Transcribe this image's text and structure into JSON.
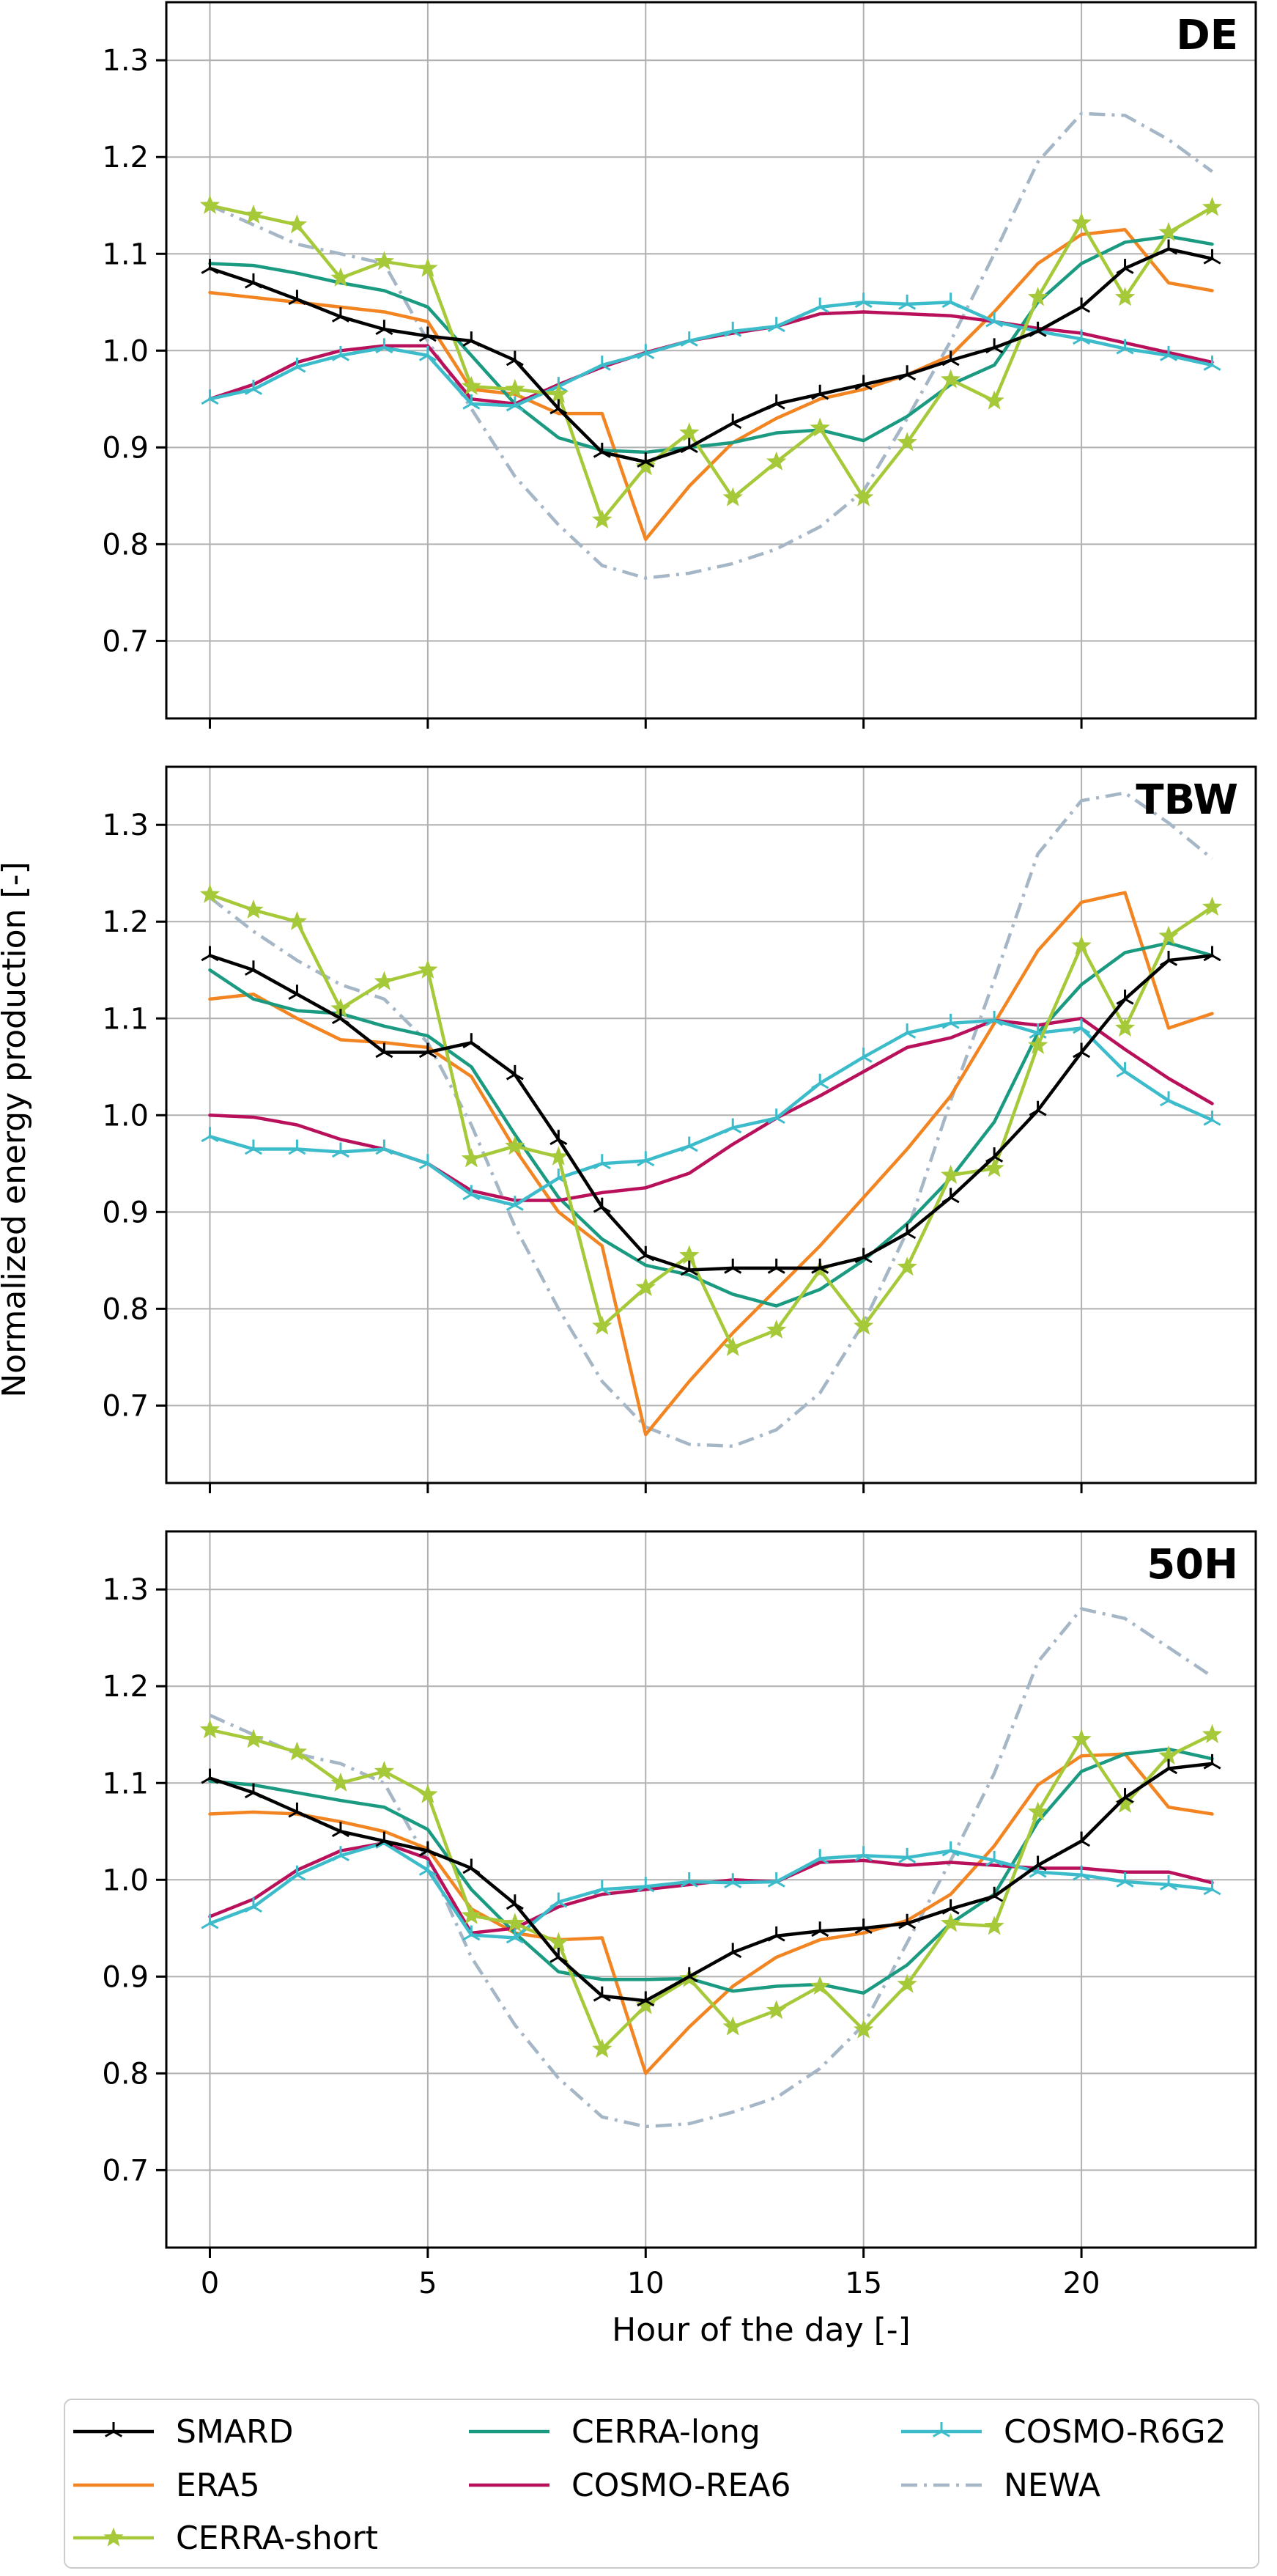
{
  "chart_data": {
    "type": "line",
    "ylabel": "Normalized energy production [-]",
    "xlabel": "Hour of the day [-]",
    "xlim": [
      -1,
      24
    ],
    "ylim": [
      0.62,
      1.36
    ],
    "xticks": [
      0,
      5,
      10,
      15,
      20
    ],
    "yticks": [
      0.7,
      0.8,
      0.9,
      1.0,
      1.1,
      1.2,
      1.3
    ],
    "ytick_labels": [
      "0.7",
      "0.8",
      "0.9",
      "1.0",
      "1.1",
      "1.2",
      "1.3"
    ],
    "xtick_labels": [
      "0",
      "5",
      "10",
      "15",
      "20"
    ],
    "grid": true,
    "legend_position": "bottom",
    "series_styles": [
      {
        "name": "SMARD",
        "color": "#000000",
        "marker": "tri",
        "dash": ""
      },
      {
        "name": "ERA5",
        "color": "#f28522",
        "marker": "none",
        "dash": ""
      },
      {
        "name": "CERRA-short",
        "color": "#a6c93a",
        "marker": "star",
        "dash": ""
      },
      {
        "name": "CERRA-long",
        "color": "#1a9a80",
        "marker": "none",
        "dash": ""
      },
      {
        "name": "COSMO-REA6",
        "color": "#b8105a",
        "marker": "none",
        "dash": ""
      },
      {
        "name": "COSMO-R6G2",
        "color": "#3cbccb",
        "marker": "tri",
        "dash": ""
      },
      {
        "name": "NEWA",
        "color": "#a5b6c6",
        "marker": "none",
        "dash": "dashdot"
      }
    ],
    "x": [
      0,
      1,
      2,
      3,
      4,
      5,
      6,
      7,
      8,
      9,
      10,
      11,
      12,
      13,
      14,
      15,
      16,
      17,
      18,
      19,
      20,
      21,
      22,
      23
    ],
    "panels": [
      {
        "title": "DE",
        "series": [
          {
            "name": "SMARD",
            "values": [
              1.085,
              1.07,
              1.053,
              1.035,
              1.022,
              1.015,
              1.01,
              0.99,
              0.94,
              0.895,
              0.885,
              0.9,
              0.925,
              0.945,
              0.955,
              0.965,
              0.975,
              0.99,
              1.003,
              1.02,
              1.045,
              1.085,
              1.105,
              1.095
            ]
          },
          {
            "name": "ERA5",
            "values": [
              1.06,
              1.055,
              1.05,
              1.045,
              1.04,
              1.03,
              0.96,
              0.955,
              0.935,
              0.935,
              0.805,
              0.86,
              0.905,
              0.93,
              0.95,
              0.96,
              0.975,
              0.995,
              1.04,
              1.09,
              1.12,
              1.125,
              1.07,
              1.062
            ]
          },
          {
            "name": "CERRA-short",
            "values": [
              1.15,
              1.14,
              1.13,
              1.075,
              1.092,
              1.085,
              0.963,
              0.96,
              0.955,
              0.825,
              0.88,
              0.915,
              0.848,
              0.885,
              0.92,
              0.848,
              0.905,
              0.97,
              0.948,
              1.055,
              1.132,
              1.055,
              1.122,
              1.148
            ]
          },
          {
            "name": "CERRA-long",
            "values": [
              1.09,
              1.088,
              1.08,
              1.07,
              1.062,
              1.045,
              0.995,
              0.945,
              0.91,
              0.897,
              0.895,
              0.9,
              0.905,
              0.915,
              0.918,
              0.907,
              0.932,
              0.965,
              0.985,
              1.05,
              1.09,
              1.112,
              1.118,
              1.11
            ]
          },
          {
            "name": "COSMO-REA6",
            "values": [
              0.95,
              0.965,
              0.988,
              1.0,
              1.005,
              1.005,
              0.95,
              0.945,
              0.965,
              0.983,
              0.998,
              1.01,
              1.018,
              1.025,
              1.038,
              1.04,
              1.038,
              1.036,
              1.03,
              1.023,
              1.018,
              1.008,
              0.998,
              0.988
            ]
          },
          {
            "name": "COSMO-R6G2",
            "values": [
              0.95,
              0.96,
              0.983,
              0.995,
              1.003,
              0.995,
              0.945,
              0.943,
              0.963,
              0.985,
              0.997,
              1.01,
              1.02,
              1.025,
              1.045,
              1.05,
              1.048,
              1.05,
              1.03,
              1.02,
              1.012,
              1.002,
              0.995,
              0.985
            ]
          },
          {
            "name": "NEWA",
            "values": [
              1.15,
              1.13,
              1.11,
              1.1,
              1.09,
              1.01,
              0.94,
              0.87,
              0.82,
              0.778,
              0.765,
              0.77,
              0.78,
              0.795,
              0.818,
              0.855,
              0.93,
              1.01,
              1.1,
              1.195,
              1.245,
              1.243,
              1.218,
              1.185
            ]
          }
        ]
      },
      {
        "title": "TBW",
        "series": [
          {
            "name": "SMARD",
            "values": [
              1.165,
              1.15,
              1.125,
              1.1,
              1.065,
              1.065,
              1.075,
              1.042,
              0.975,
              0.905,
              0.855,
              0.84,
              0.842,
              0.842,
              0.842,
              0.853,
              0.878,
              0.915,
              0.957,
              1.005,
              1.065,
              1.12,
              1.16,
              1.165
            ]
          },
          {
            "name": "ERA5",
            "values": [
              1.12,
              1.125,
              1.1,
              1.078,
              1.075,
              1.07,
              1.04,
              0.965,
              0.9,
              0.865,
              0.67,
              0.725,
              0.775,
              0.82,
              0.865,
              0.915,
              0.965,
              1.02,
              1.095,
              1.17,
              1.22,
              1.23,
              1.09,
              1.105
            ]
          },
          {
            "name": "CERRA-short",
            "values": [
              1.228,
              1.212,
              1.2,
              1.11,
              1.138,
              1.15,
              0.955,
              0.968,
              0.957,
              0.782,
              0.822,
              0.855,
              0.76,
              0.778,
              0.84,
              0.782,
              0.843,
              0.938,
              0.945,
              1.072,
              1.175,
              1.09,
              1.185,
              1.215
            ]
          },
          {
            "name": "CERRA-long",
            "values": [
              1.15,
              1.12,
              1.108,
              1.105,
              1.092,
              1.082,
              1.05,
              0.98,
              0.915,
              0.872,
              0.845,
              0.835,
              0.815,
              0.803,
              0.82,
              0.85,
              0.888,
              0.935,
              0.993,
              1.085,
              1.135,
              1.168,
              1.178,
              1.165
            ]
          },
          {
            "name": "COSMO-REA6",
            "values": [
              1.0,
              0.998,
              0.99,
              0.975,
              0.965,
              0.95,
              0.922,
              0.912,
              0.912,
              0.92,
              0.925,
              0.94,
              0.97,
              0.997,
              1.02,
              1.045,
              1.07,
              1.08,
              1.098,
              1.093,
              1.1,
              1.068,
              1.038,
              1.012
            ]
          },
          {
            "name": "COSMO-R6G2",
            "values": [
              0.978,
              0.965,
              0.965,
              0.962,
              0.965,
              0.95,
              0.918,
              0.907,
              0.935,
              0.95,
              0.953,
              0.968,
              0.987,
              0.997,
              1.033,
              1.06,
              1.085,
              1.095,
              1.098,
              1.085,
              1.09,
              1.045,
              1.015,
              0.995
            ]
          },
          {
            "name": "NEWA",
            "values": [
              1.225,
              1.19,
              1.16,
              1.135,
              1.12,
              1.075,
              0.99,
              0.885,
              0.8,
              0.725,
              0.678,
              0.66,
              0.658,
              0.675,
              0.713,
              0.785,
              0.88,
              1.015,
              1.14,
              1.27,
              1.325,
              1.333,
              1.302,
              1.265
            ]
          }
        ]
      },
      {
        "title": "50H",
        "series": [
          {
            "name": "SMARD",
            "values": [
              1.105,
              1.09,
              1.07,
              1.05,
              1.04,
              1.03,
              1.012,
              0.975,
              0.92,
              0.88,
              0.875,
              0.9,
              0.925,
              0.942,
              0.947,
              0.95,
              0.955,
              0.97,
              0.983,
              1.015,
              1.04,
              1.085,
              1.115,
              1.12
            ]
          },
          {
            "name": "ERA5",
            "values": [
              1.068,
              1.07,
              1.068,
              1.06,
              1.05,
              1.032,
              0.97,
              0.945,
              0.938,
              0.94,
              0.8,
              0.848,
              0.89,
              0.92,
              0.938,
              0.945,
              0.958,
              0.985,
              1.035,
              1.098,
              1.128,
              1.13,
              1.075,
              1.068
            ]
          },
          {
            "name": "CERRA-short",
            "values": [
              1.155,
              1.145,
              1.132,
              1.1,
              1.112,
              1.088,
              0.963,
              0.955,
              0.935,
              0.825,
              0.87,
              0.898,
              0.848,
              0.865,
              0.89,
              0.845,
              0.892,
              0.955,
              0.952,
              1.07,
              1.145,
              1.078,
              1.128,
              1.15
            ]
          },
          {
            "name": "CERRA-long",
            "values": [
              1.102,
              1.098,
              1.09,
              1.082,
              1.075,
              1.052,
              0.99,
              0.945,
              0.905,
              0.897,
              0.897,
              0.898,
              0.885,
              0.89,
              0.892,
              0.883,
              0.912,
              0.955,
              0.985,
              1.06,
              1.112,
              1.13,
              1.135,
              1.125
            ]
          },
          {
            "name": "COSMO-REA6",
            "values": [
              0.962,
              0.98,
              1.01,
              1.03,
              1.038,
              1.022,
              0.945,
              0.95,
              0.972,
              0.985,
              0.99,
              0.995,
              1.0,
              0.998,
              1.018,
              1.02,
              1.015,
              1.018,
              1.015,
              1.012,
              1.012,
              1.008,
              1.008,
              0.997
            ]
          },
          {
            "name": "COSMO-R6G2",
            "values": [
              0.955,
              0.972,
              1.005,
              1.025,
              1.038,
              1.01,
              0.943,
              0.94,
              0.977,
              0.99,
              0.993,
              0.998,
              0.997,
              0.998,
              1.022,
              1.025,
              1.023,
              1.03,
              1.02,
              1.008,
              1.005,
              0.998,
              0.995,
              0.99
            ]
          },
          {
            "name": "NEWA",
            "values": [
              1.17,
              1.15,
              1.13,
              1.12,
              1.1,
              1.02,
              0.92,
              0.85,
              0.795,
              0.755,
              0.745,
              0.748,
              0.76,
              0.775,
              0.805,
              0.85,
              0.935,
              1.02,
              1.11,
              1.225,
              1.28,
              1.27,
              1.24,
              1.21
            ]
          }
        ]
      }
    ]
  }
}
